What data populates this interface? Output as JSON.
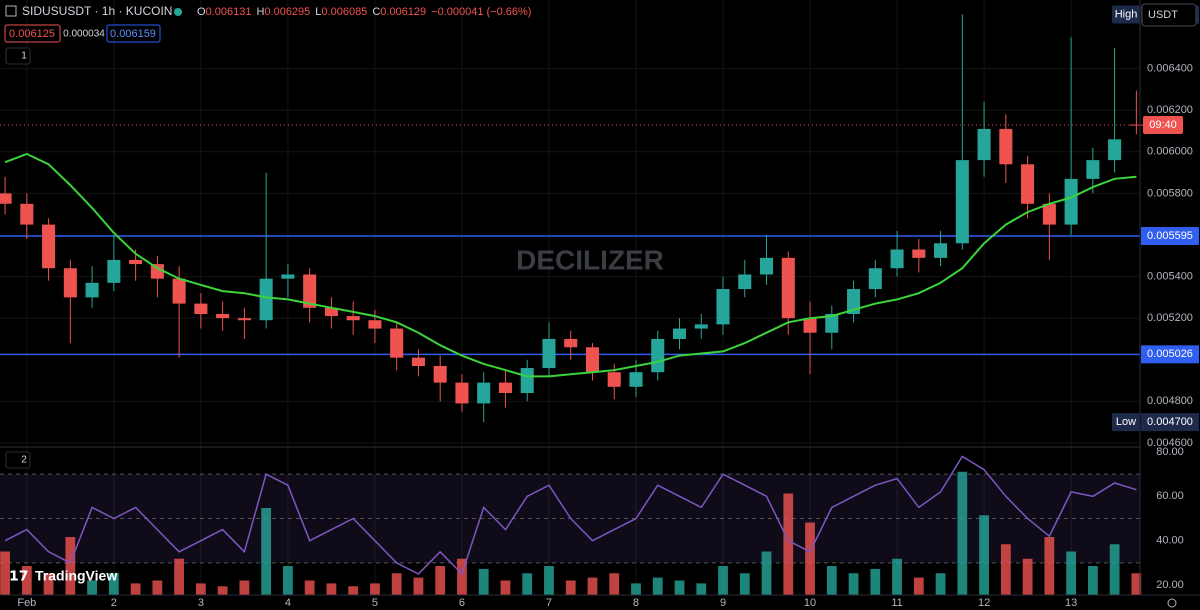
{
  "header": {
    "symbol": "SIDUSUSDT · 1h · KUCOIN",
    "ohlc": [
      "O",
      "0.006131",
      "H",
      "0.006295",
      "L",
      "0.006085",
      "C",
      "0.006129",
      "−0.000041 (−0.66%)"
    ],
    "quotes": [
      "0.006125",
      "0.000034",
      "0.006159"
    ],
    "panes": [
      "1",
      "2"
    ],
    "currency": "USDT",
    "watermark": "DECILIZER",
    "brand": "TradingView"
  },
  "chart_data": [
    {
      "type": "candlestick",
      "up_color": "#26a69a",
      "down_color": "#ef5350",
      "grid": true,
      "x": [
        -6,
        0,
        6,
        12,
        18,
        24,
        30,
        36,
        42,
        48,
        54,
        60,
        66,
        72,
        78,
        84,
        90,
        96,
        102,
        108,
        114,
        120,
        126,
        132,
        138,
        144,
        150,
        156,
        162,
        168,
        174,
        180,
        186,
        192,
        198,
        204,
        210,
        216,
        222,
        228,
        234,
        240,
        246,
        252,
        258,
        264,
        270,
        276,
        282,
        288,
        294,
        300,
        306
      ],
      "open": [
        0.0058,
        0.00575,
        0.00565,
        0.00544,
        0.0053,
        0.00537,
        0.00548,
        0.00546,
        0.00539,
        0.00527,
        0.00522,
        0.0052,
        0.00519,
        0.00539,
        0.00541,
        0.00525,
        0.00521,
        0.00519,
        0.00515,
        0.00501,
        0.00497,
        0.00489,
        0.00479,
        0.00489,
        0.00484,
        0.00496,
        0.0051,
        0.00506,
        0.00494,
        0.00487,
        0.00494,
        0.0051,
        0.00515,
        0.00517,
        0.00534,
        0.00541,
        0.00549,
        0.0052,
        0.00513,
        0.00522,
        0.00534,
        0.00544,
        0.00553,
        0.00549,
        0.00556,
        0.00596,
        0.00611,
        0.00594,
        0.00575,
        0.00565,
        0.00587,
        0.00596,
        0.006131
      ],
      "high": [
        0.00588,
        0.0058,
        0.00568,
        0.00548,
        0.00545,
        0.0056,
        0.00553,
        0.0055,
        0.00545,
        0.00532,
        0.00528,
        0.00525,
        0.0059,
        0.00546,
        0.00544,
        0.0053,
        0.00528,
        0.00524,
        0.00518,
        0.00505,
        0.00502,
        0.00493,
        0.00494,
        0.00495,
        0.005,
        0.00518,
        0.00514,
        0.00508,
        0.00498,
        0.005,
        0.00514,
        0.0052,
        0.00522,
        0.0054,
        0.00548,
        0.0056,
        0.00552,
        0.00528,
        0.00526,
        0.00538,
        0.00548,
        0.00562,
        0.00558,
        0.00562,
        0.00666,
        0.00624,
        0.00618,
        0.00598,
        0.0058,
        0.00655,
        0.00602,
        0.0065,
        0.006295
      ],
      "low": [
        0.0057,
        0.00558,
        0.00538,
        0.00508,
        0.00525,
        0.00533,
        0.00538,
        0.0053,
        0.00501,
        0.00515,
        0.00514,
        0.0051,
        0.00515,
        0.0053,
        0.00518,
        0.00515,
        0.00512,
        0.00508,
        0.00495,
        0.00492,
        0.0048,
        0.00475,
        0.0047,
        0.00477,
        0.0048,
        0.00492,
        0.005,
        0.0049,
        0.00481,
        0.00482,
        0.0049,
        0.00505,
        0.0051,
        0.00512,
        0.0053,
        0.00536,
        0.00512,
        0.00493,
        0.00505,
        0.00518,
        0.0053,
        0.0054,
        0.00542,
        0.00545,
        0.00553,
        0.00588,
        0.00585,
        0.00568,
        0.00548,
        0.0056,
        0.0058,
        0.0059,
        0.006085
      ],
      "close": [
        0.00575,
        0.00565,
        0.00544,
        0.0053,
        0.00537,
        0.00548,
        0.00546,
        0.00539,
        0.00527,
        0.00522,
        0.0052,
        0.00519,
        0.00539,
        0.00541,
        0.00525,
        0.00521,
        0.00519,
        0.00515,
        0.00501,
        0.00497,
        0.00489,
        0.00479,
        0.00489,
        0.00484,
        0.00496,
        0.0051,
        0.00506,
        0.00494,
        0.00487,
        0.00494,
        0.0051,
        0.00515,
        0.00517,
        0.00534,
        0.00541,
        0.00549,
        0.0052,
        0.00513,
        0.00522,
        0.00534,
        0.00544,
        0.00553,
        0.00549,
        0.00556,
        0.00596,
        0.00611,
        0.00594,
        0.00575,
        0.00565,
        0.00587,
        0.00596,
        0.00606,
        0.006129
      ],
      "ma": {
        "color": "#3bd43b",
        "values": [
          0.00595,
          0.00599,
          0.00594,
          0.00584,
          0.00573,
          0.00561,
          0.00551,
          0.00544,
          0.00539,
          0.00536,
          0.00533,
          0.00532,
          0.0053,
          0.00529,
          0.00527,
          0.00525,
          0.00523,
          0.00521,
          0.00518,
          0.00513,
          0.00507,
          0.00502,
          0.00498,
          0.00495,
          0.00492,
          0.00492,
          0.00493,
          0.00494,
          0.00495,
          0.00497,
          0.00499,
          0.00502,
          0.00503,
          0.00504,
          0.00508,
          0.00513,
          0.00518,
          0.0052,
          0.00521,
          0.00524,
          0.00527,
          0.00529,
          0.00532,
          0.00537,
          0.00544,
          0.00556,
          0.00565,
          0.00571,
          0.00575,
          0.00578,
          0.00583,
          0.00587,
          0.00588
        ]
      },
      "xlim": [
        -7.4,
        307
      ],
      "xticks": [
        {
          "value": 0,
          "label": "Feb"
        },
        {
          "value": 24,
          "label": "2"
        },
        {
          "value": 48,
          "label": "3"
        },
        {
          "value": 72,
          "label": "4"
        },
        {
          "value": 96,
          "label": "5"
        },
        {
          "value": 120,
          "label": "6"
        },
        {
          "value": 144,
          "label": "7"
        },
        {
          "value": 168,
          "label": "8"
        },
        {
          "value": 192,
          "label": "9"
        },
        {
          "value": 216,
          "label": "10"
        },
        {
          "value": 240,
          "label": "11"
        },
        {
          "value": 264,
          "label": "12"
        },
        {
          "value": 288,
          "label": "13"
        }
      ],
      "ylim": [
        0.00459,
        0.00673
      ],
      "yticks": [
        {
          "value": 0.0064,
          "label": "0.006400"
        },
        {
          "value": 0.0062,
          "label": "0.006200"
        },
        {
          "value": 0.006,
          "label": "0.006000"
        },
        {
          "value": 0.0058,
          "label": "0.005800"
        },
        {
          "value": 0.0054,
          "label": "0.005400"
        },
        {
          "value": 0.0052,
          "label": "0.005200"
        },
        {
          "value": 0.0048,
          "label": "0.004800"
        },
        {
          "value": 0.0046,
          "label": "0.004600"
        }
      ],
      "levels": [
        {
          "value": 0.005595,
          "label": "0.005595"
        },
        {
          "value": 0.005026,
          "label": "0.005026"
        }
      ],
      "level_color": "#2f5ef0",
      "last_price": 0.006129,
      "countdown": "09:40",
      "high_marker": {
        "name": "High",
        "value": 0.00666
      },
      "low_marker": {
        "name": "Low",
        "value": 0.0047,
        "label": "0.004700"
      }
    },
    {
      "type": "line",
      "color": "#7e57c2",
      "values": [
        40,
        45,
        35,
        30,
        55,
        50,
        55,
        45,
        35,
        40,
        45,
        35,
        70,
        65,
        40,
        45,
        50,
        40,
        30,
        25,
        35,
        25,
        55,
        45,
        60,
        65,
        50,
        40,
        45,
        50,
        65,
        60,
        55,
        70,
        65,
        60,
        40,
        35,
        55,
        60,
        65,
        68,
        55,
        62,
        78,
        72,
        60,
        50,
        42,
        62,
        60,
        66,
        63
      ],
      "ylim": [
        15.5,
        81.8
      ],
      "yticks": [
        {
          "value": 80,
          "label": "80.00"
        },
        {
          "value": 60,
          "label": "60.00"
        },
        {
          "value": 40,
          "label": "40.00"
        },
        {
          "value": 20,
          "label": "20.00"
        }
      ],
      "levels": [
        30,
        50,
        70
      ],
      "volume": {
        "values": [
          30,
          20,
          15,
          40,
          10,
          15,
          8,
          10,
          25,
          8,
          6,
          10,
          60,
          20,
          10,
          8,
          6,
          8,
          15,
          12,
          20,
          25,
          18,
          10,
          15,
          20,
          10,
          12,
          15,
          8,
          12,
          10,
          8,
          20,
          15,
          30,
          70,
          50,
          20,
          15,
          18,
          25,
          12,
          15,
          85,
          55,
          35,
          25,
          40,
          30,
          20,
          35,
          15
        ],
        "vlim": [
          0,
          100
        ]
      }
    }
  ]
}
